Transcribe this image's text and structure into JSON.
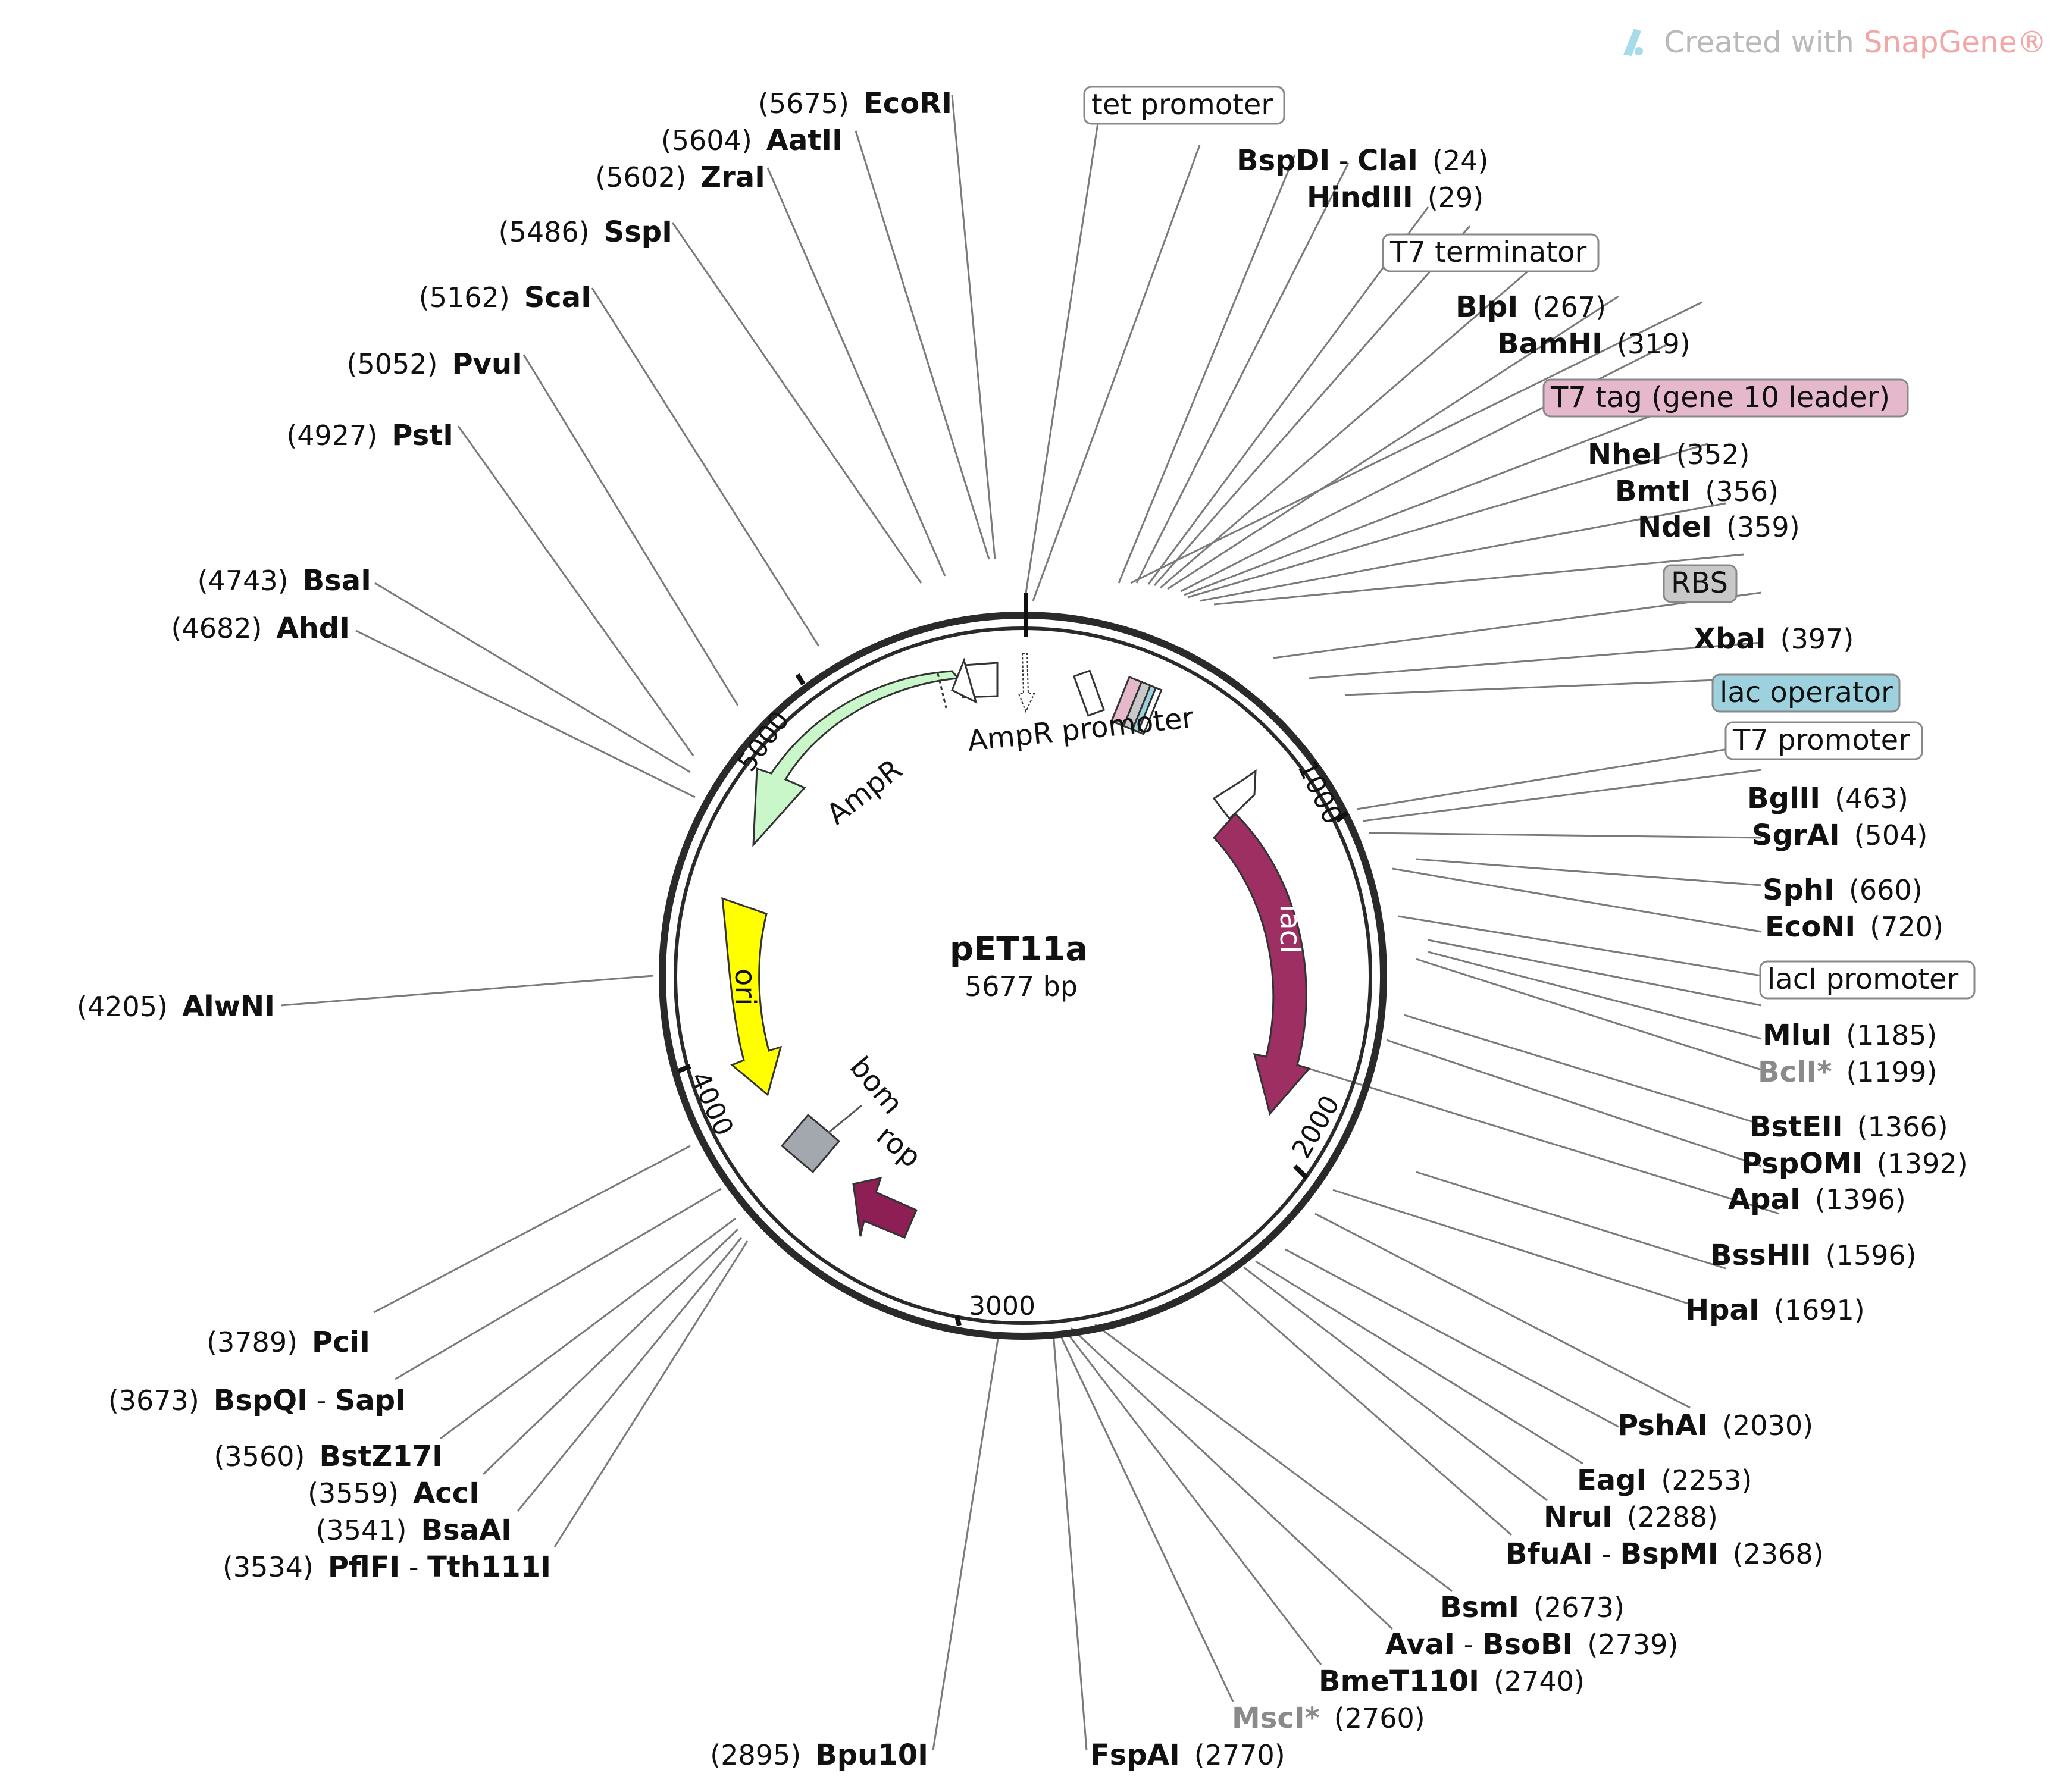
{
  "plasmid": {
    "name": "pET11a",
    "length_label": "5677 bp"
  },
  "watermark": {
    "prefix": "Created with ",
    "brand": "SnapGene®"
  },
  "ticks": [
    "1000",
    "2000",
    "3000",
    "4000",
    "5000"
  ],
  "colors": {
    "AmpR": "#c9f7c9",
    "ori": "#ffff00",
    "lacI": "#9e2f63",
    "rop": "#8e1f55",
    "bom": "#a3a8ae",
    "T7_tag": "#e5b8cc",
    "RBS": "#c8c8c8",
    "lac_operator": "#9ed1de"
  },
  "features": {
    "ampr": "AmpR",
    "ampr_promoter": "AmpR promoter",
    "ori": "ori",
    "laci": "lacI",
    "bom": "bom",
    "rop": "rop"
  },
  "boxed_labels": {
    "tet_promoter": "tet promoter",
    "t7_terminator": "T7 terminator",
    "t7_tag": "T7 tag (gene 10 leader)",
    "rbs": "RBS",
    "lac_operator": "lac operator",
    "t7_promoter": "T7 promoter",
    "laci_promoter": "lacI promoter"
  },
  "sites_right": [
    {
      "name": "BspDI",
      "sep": " - ",
      "name2": "ClaI",
      "pos": "(24)"
    },
    {
      "name": "HindIII",
      "pos": "(29)"
    },
    {
      "name": "BlpI",
      "pos": "(267)"
    },
    {
      "name": "BamHI",
      "pos": "(319)"
    },
    {
      "name": "NheI",
      "pos": "(352)"
    },
    {
      "name": "BmtI",
      "pos": "(356)"
    },
    {
      "name": "NdeI",
      "pos": "(359)"
    },
    {
      "name": "XbaI",
      "pos": "(397)"
    },
    {
      "name": "BglII",
      "pos": "(463)"
    },
    {
      "name": "SgrAI",
      "pos": "(504)"
    },
    {
      "name": "SphI",
      "pos": "(660)"
    },
    {
      "name": "EcoNI",
      "pos": "(720)"
    },
    {
      "name": "MluI",
      "pos": "(1185)"
    },
    {
      "name": "BclI*",
      "pos": "(1199)"
    },
    {
      "name": "BstEII",
      "pos": "(1366)"
    },
    {
      "name": "PspOMI",
      "pos": "(1392)"
    },
    {
      "name": "ApaI",
      "pos": "(1396)"
    },
    {
      "name": "BssHII",
      "pos": "(1596)"
    },
    {
      "name": "HpaI",
      "pos": "(1691)"
    },
    {
      "name": "PshAI",
      "pos": "(2030)"
    },
    {
      "name": "EagI",
      "pos": "(2253)"
    },
    {
      "name": "NruI",
      "pos": "(2288)"
    },
    {
      "name": "BfuAI",
      "sep": " - ",
      "name2": "BspMI",
      "pos": "(2368)"
    },
    {
      "name": "BsmI",
      "pos": "(2673)"
    },
    {
      "name": "AvaI",
      "sep": " - ",
      "name2": "BsoBI",
      "pos": "(2739)"
    },
    {
      "name": "BmeT110I",
      "pos": "(2740)"
    },
    {
      "name": "MscI*",
      "pos": "(2760)"
    },
    {
      "name": "FspAI",
      "pos": "(2770)"
    }
  ],
  "sites_left": [
    {
      "name": "EcoRI",
      "pos": "(5675)"
    },
    {
      "name": "AatII",
      "pos": "(5604)"
    },
    {
      "name": "ZraI",
      "pos": "(5602)"
    },
    {
      "name": "SspI",
      "pos": "(5486)"
    },
    {
      "name": "ScaI",
      "pos": "(5162)"
    },
    {
      "name": "PvuI",
      "pos": "(5052)"
    },
    {
      "name": "PstI",
      "pos": "(4927)"
    },
    {
      "name": "BsaI",
      "pos": "(4743)"
    },
    {
      "name": "AhdI",
      "pos": "(4682)"
    },
    {
      "name": "AlwNI",
      "pos": "(4205)"
    },
    {
      "name": "PciI",
      "pos": "(3789)"
    },
    {
      "name": "BspQI",
      "sep": " - ",
      "name2": "SapI",
      "pos": "(3673)"
    },
    {
      "name": "BstZ17I",
      "pos": "(3560)"
    },
    {
      "name": "AccI",
      "pos": "(3559)"
    },
    {
      "name": "BsaAI",
      "pos": "(3541)"
    },
    {
      "name": "PflFI",
      "sep": " - ",
      "name2": "Tth111I",
      "pos": "(3534)"
    },
    {
      "name": "Bpu10I",
      "pos": "(2895)"
    }
  ]
}
